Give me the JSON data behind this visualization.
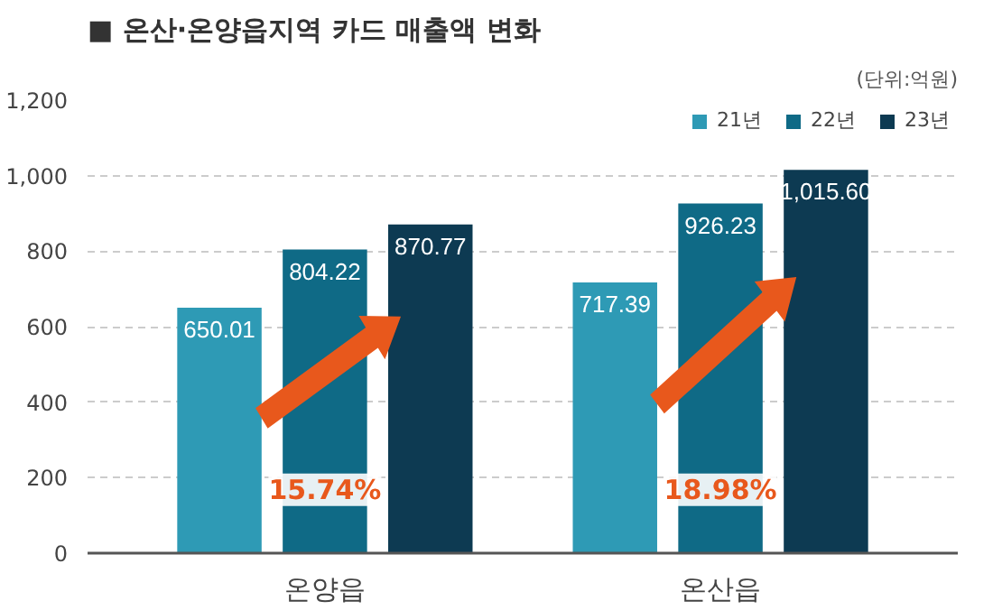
{
  "chart_data": {
    "type": "bar",
    "title": "■ 온산·온양읍지역 카드 매출액 변화",
    "categories": [
      "온양읍",
      "온산읍"
    ],
    "series": [
      {
        "name": "21년",
        "color": "#2e9ab5",
        "values": [
          650.01,
          717.39
        ],
        "value_labels": [
          "650.01",
          "717.39"
        ]
      },
      {
        "name": "22년",
        "color": "#0f6a86",
        "values": [
          804.22,
          926.23
        ],
        "value_labels": [
          "804.22",
          "926.23"
        ]
      },
      {
        "name": "23년",
        "color": "#0d3a52",
        "values": [
          870.77,
          1015.6
        ],
        "value_labels": [
          "870.77",
          "1,015.60"
        ]
      }
    ],
    "ylim": [
      0,
      1200
    ],
    "yticks": [
      0,
      200,
      400,
      600,
      800,
      {
        "value": 1000,
        "label": "1,000"
      },
      {
        "value": 1200,
        "label": "1,200"
      }
    ],
    "grid": "y",
    "legend": "top right",
    "annotations": [
      "(단위:억원)",
      "15.74%",
      "18.98%"
    ]
  }
}
